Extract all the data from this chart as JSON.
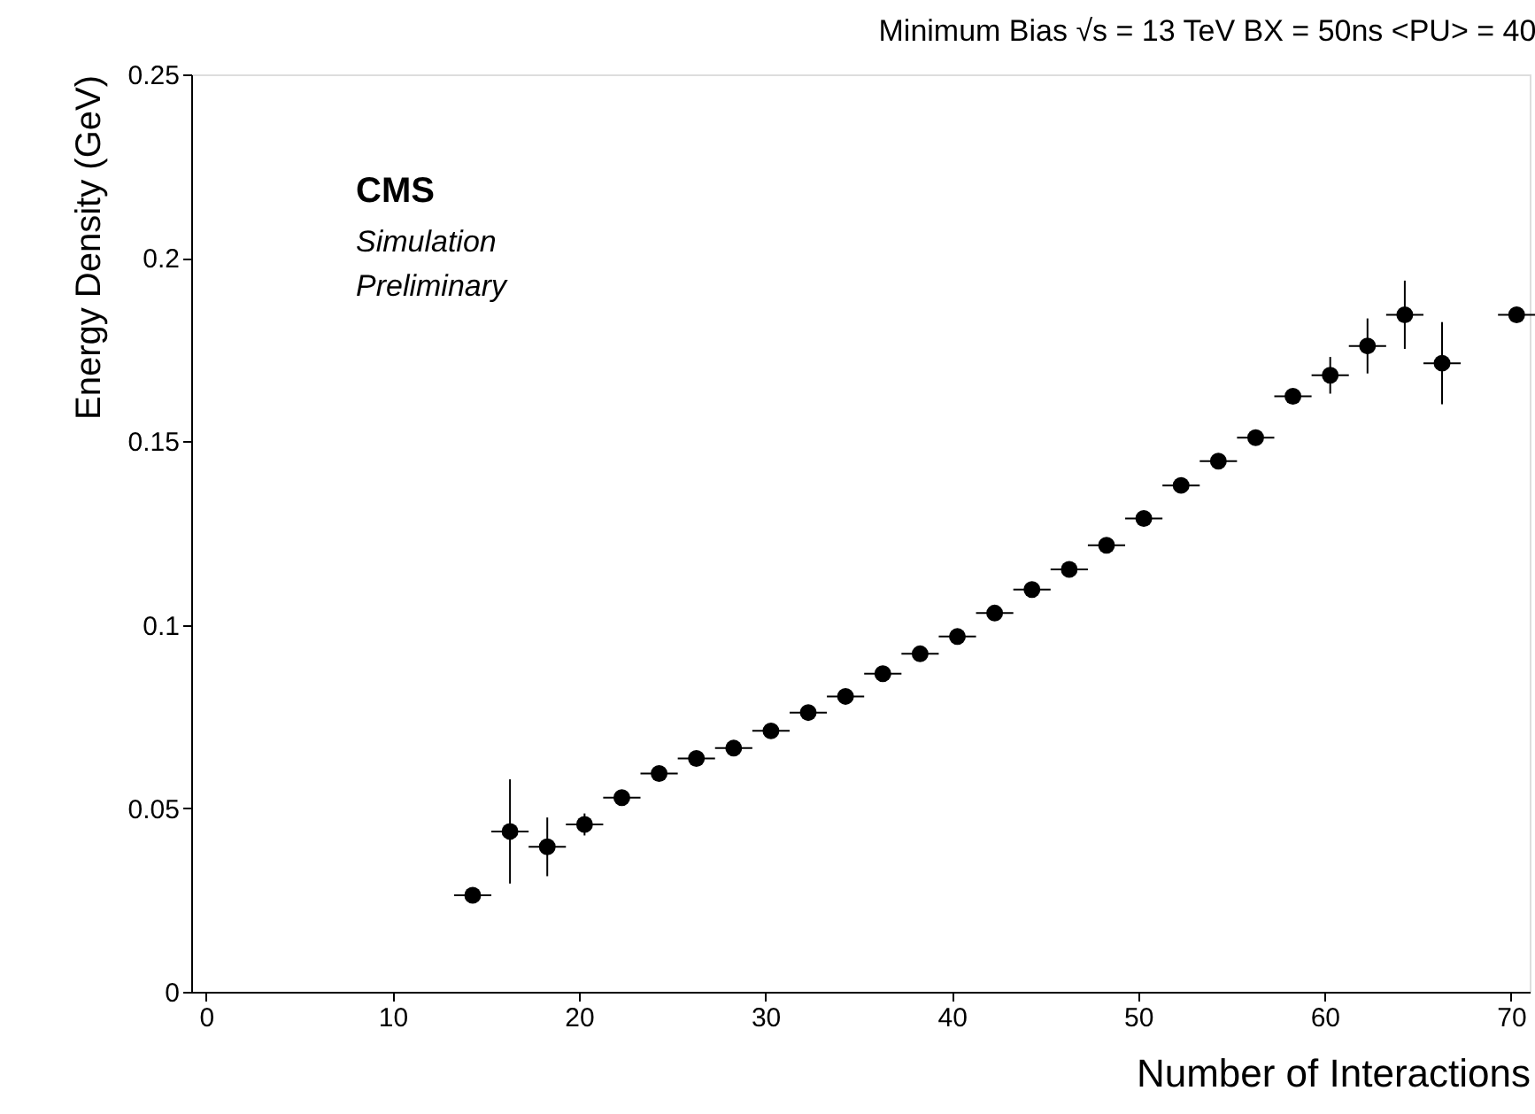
{
  "chart_data": {
    "type": "scatter",
    "title": "Minimum Bias √s = 13 TeV  BX = 50ns  <PU> = 40",
    "xlabel": "Number of Interactions",
    "ylabel": "Energy Density (GeV)",
    "annotations": [
      "CMS",
      "Simulation",
      "Preliminary"
    ],
    "x": [
      14.3,
      16.3,
      18.3,
      20.3,
      22.3,
      24.3,
      26.3,
      28.3,
      30.3,
      32.3,
      34.3,
      36.3,
      38.3,
      40.3,
      42.3,
      44.3,
      46.3,
      48.3,
      50.3,
      52.3,
      54.3,
      56.3,
      58.3,
      60.3,
      62.3,
      64.3,
      66.3,
      70.3
    ],
    "series": [
      {
        "color": "#000000",
        "values": [
          0.0263,
          0.0437,
          0.0395,
          0.0456,
          0.0529,
          0.0595,
          0.0636,
          0.0664,
          0.0711,
          0.0761,
          0.0805,
          0.0867,
          0.0921,
          0.0968,
          0.1032,
          0.1096,
          0.1151,
          0.1217,
          0.129,
          0.138,
          0.1446,
          0.151,
          0.1623,
          0.168,
          0.176,
          0.1845,
          0.1713,
          0.1845
        ],
        "errors": [
          null,
          0.0142,
          0.008,
          0.003,
          null,
          null,
          null,
          null,
          null,
          null,
          null,
          null,
          null,
          null,
          null,
          null,
          null,
          null,
          null,
          null,
          null,
          null,
          0.002,
          0.005,
          0.0075,
          0.0093,
          0.0112,
          null
        ],
        "xerrors": [
          1,
          1,
          1,
          1,
          1,
          1,
          1,
          1,
          1,
          1,
          1,
          1,
          1,
          1,
          1,
          1,
          1,
          1,
          1,
          1,
          1,
          1,
          1,
          1,
          1,
          1,
          1,
          1
        ]
      }
    ],
    "xlim": [
      -0.8,
      71
    ],
    "ylim": [
      0,
      0.25
    ],
    "xticks": [
      0,
      10,
      20,
      30,
      40,
      50,
      60,
      70
    ],
    "yticks": [
      0,
      0.05,
      0.1,
      0.15,
      0.2,
      0.25
    ],
    "marker": "circle",
    "grid": false,
    "legend": false
  }
}
